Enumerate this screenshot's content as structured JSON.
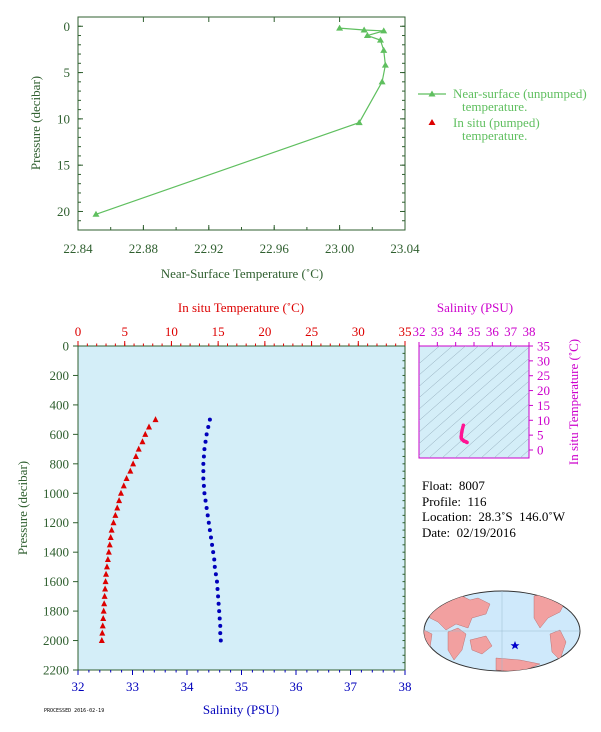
{
  "colors": {
    "axis_green": "#2f5f2f",
    "series_green": "#5fbf5f",
    "temp_red": "#dd0000",
    "sal_blue": "#0000bb",
    "magenta": "#cc00cc",
    "panel_fill": "#d4eef8",
    "ts_point": "#ff1493"
  },
  "chart_data": [
    {
      "type": "line",
      "xlabel": "Near-Surface Temperature (˚C)",
      "ylabel": "Pressure (decibar)",
      "xlim": [
        22.84,
        23.04
      ],
      "ylim": [
        22,
        -1
      ],
      "xticks": [
        "22.84",
        "22.88",
        "22.92",
        "22.96",
        "23.00",
        "23.04"
      ],
      "yticks": [
        "0",
        "5",
        "10",
        "15",
        "20"
      ],
      "legend": [
        "Near-surface (unpumped)\ntemperature.",
        "In situ (pumped)\ntemperature."
      ],
      "legend_position": "right",
      "series": [
        {
          "name": "Near-surface (unpumped) temperature.",
          "x": [
            23.0,
            23.015,
            23.027,
            23.017,
            23.025,
            23.027,
            23.028,
            23.026,
            23.012,
            22.851
          ],
          "y": [
            0.2,
            0.4,
            0.5,
            1.0,
            1.5,
            2.6,
            4.2,
            6.0,
            10.4,
            20.3
          ]
        }
      ]
    },
    {
      "type": "scatter",
      "top_xlabel": "In situ Temperature (˚C)",
      "bottom_xlabel": "Salinity (PSU)",
      "ylabel": "Pressure (decibar)",
      "temp_xlim": [
        0,
        35
      ],
      "sal_xlim": [
        32,
        38
      ],
      "ylim": [
        2200,
        0
      ],
      "temp_ticks": [
        "0",
        "5",
        "10",
        "15",
        "20",
        "25",
        "30",
        "35"
      ],
      "sal_ticks": [
        "32",
        "33",
        "34",
        "35",
        "36",
        "37",
        "38"
      ],
      "pressure_ticks": [
        "0",
        "200",
        "400",
        "600",
        "800",
        "1000",
        "1200",
        "1400",
        "1600",
        "1800",
        "2000",
        "2200"
      ],
      "series": [
        {
          "name": "In situ Temperature",
          "pressure": [
            500,
            550,
            600,
            650,
            700,
            750,
            800,
            850,
            900,
            950,
            1000,
            1050,
            1100,
            1150,
            1200,
            1250,
            1300,
            1350,
            1400,
            1450,
            1500,
            1550,
            1600,
            1650,
            1700,
            1750,
            1800,
            1850,
            1900,
            1950,
            2000
          ],
          "values": [
            8.3,
            7.6,
            7.2,
            6.9,
            6.5,
            6.2,
            5.9,
            5.6,
            5.2,
            4.9,
            4.6,
            4.4,
            4.2,
            4.0,
            3.8,
            3.6,
            3.5,
            3.4,
            3.3,
            3.2,
            3.1,
            3.0,
            2.95,
            2.9,
            2.85,
            2.8,
            2.75,
            2.7,
            2.65,
            2.6,
            2.55
          ]
        },
        {
          "name": "Salinity",
          "pressure": [
            500,
            550,
            600,
            650,
            700,
            750,
            800,
            850,
            900,
            950,
            1000,
            1050,
            1100,
            1150,
            1200,
            1250,
            1300,
            1350,
            1400,
            1450,
            1500,
            1550,
            1600,
            1650,
            1700,
            1750,
            1800,
            1850,
            1900,
            1950,
            2000
          ],
          "values": [
            34.42,
            34.39,
            34.36,
            34.34,
            34.32,
            34.31,
            34.3,
            34.3,
            34.3,
            34.31,
            34.32,
            34.34,
            34.36,
            34.38,
            34.4,
            34.42,
            34.44,
            34.46,
            34.48,
            34.5,
            34.51,
            34.53,
            34.55,
            34.56,
            34.57,
            34.58,
            34.59,
            34.6,
            34.61,
            34.61,
            34.62
          ]
        }
      ]
    },
    {
      "type": "scatter",
      "top_xlabel": "Salinity (PSU)",
      "right_ylabel": "In situ Temperature (˚C)",
      "sal_xlim": [
        32,
        38
      ],
      "temp_ylim": [
        0,
        35
      ],
      "sal_ticks": [
        "32",
        "33",
        "34",
        "35",
        "36",
        "37",
        "38"
      ],
      "temp_ticks": [
        "0",
        "5",
        "10",
        "15",
        "20",
        "25",
        "30",
        "35"
      ],
      "points": {
        "salinity": [
          34.42,
          34.39,
          34.36,
          34.34,
          34.32,
          34.31,
          34.3,
          34.31,
          34.34,
          34.38,
          34.42,
          34.46,
          34.5,
          34.55,
          34.59,
          34.62
        ],
        "temperature": [
          8.3,
          7.6,
          6.9,
          6.2,
          5.6,
          4.9,
          4.4,
          4.0,
          3.6,
          3.4,
          3.2,
          3.0,
          2.9,
          2.8,
          2.65,
          2.55
        ]
      }
    }
  ],
  "float_info": {
    "float_label": "Float:",
    "float_value": "8007",
    "profile_label": "Profile:",
    "profile_value": "116",
    "location_label": "Location:",
    "location_value": "28.3˚S  146.0˚W",
    "date_label": "Date:",
    "date_value": "02/19/2016"
  },
  "map": {
    "marker": "float-position-star",
    "icon": "world-map-icon"
  },
  "footer": {
    "text": "PROCESSED 2016-02-19"
  }
}
